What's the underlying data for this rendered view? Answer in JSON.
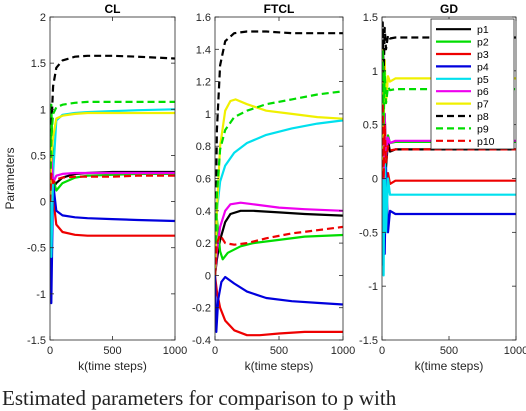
{
  "figure": {
    "caption": "Estimated parameters for comparison to p with"
  },
  "chart_data": [
    {
      "type": "line",
      "title": "CL",
      "xlabel": "k(time steps)",
      "ylabel": "Parameters",
      "xlim": [
        0,
        1000
      ],
      "ylim": [
        -1.5,
        2
      ],
      "xticks": [
        0,
        500,
        1000
      ],
      "yticks": [
        -1.5,
        -1,
        -0.5,
        0,
        0.5,
        1,
        1.5,
        2
      ],
      "grid": false,
      "series": [
        {
          "name": "p1",
          "color": "#000000",
          "dash": "solid",
          "x": [
            0,
            10,
            25,
            50,
            100,
            200,
            300,
            500,
            700,
            1000
          ],
          "y": [
            0,
            0.9,
            0.15,
            0.2,
            0.26,
            0.3,
            0.31,
            0.32,
            0.32,
            0.32
          ]
        },
        {
          "name": "p2",
          "color": "#00dd00",
          "dash": "solid",
          "x": [
            0,
            10,
            25,
            50,
            100,
            200,
            300,
            500,
            700,
            1000
          ],
          "y": [
            0,
            1.05,
            0.25,
            0.12,
            0.2,
            0.26,
            0.28,
            0.29,
            0.3,
            0.3
          ]
        },
        {
          "name": "p3",
          "color": "#ee0000",
          "dash": "solid",
          "x": [
            0,
            10,
            25,
            50,
            100,
            200,
            300,
            500,
            700,
            1000
          ],
          "y": [
            0,
            0.4,
            0.05,
            -0.25,
            -0.33,
            -0.36,
            -0.37,
            -0.37,
            -0.37,
            -0.37
          ]
        },
        {
          "name": "p4",
          "color": "#0000dd",
          "dash": "solid",
          "x": [
            0,
            10,
            25,
            50,
            100,
            200,
            300,
            500,
            700,
            1000
          ],
          "y": [
            0,
            -1.1,
            0.2,
            -0.1,
            -0.15,
            -0.17,
            -0.18,
            -0.19,
            -0.2,
            -0.21
          ]
        },
        {
          "name": "p5",
          "color": "#00e0ee",
          "dash": "solid",
          "x": [
            0,
            10,
            25,
            50,
            100,
            200,
            300,
            500,
            700,
            1000
          ],
          "y": [
            0,
            -0.6,
            0.3,
            0.88,
            0.94,
            0.96,
            0.97,
            0.98,
            0.99,
            1.0
          ]
        },
        {
          "name": "p6",
          "color": "#ee00ee",
          "dash": "solid",
          "x": [
            0,
            10,
            25,
            50,
            100,
            200,
            300,
            500,
            700,
            1000
          ],
          "y": [
            0,
            0.5,
            0.2,
            0.28,
            0.3,
            0.31,
            0.31,
            0.31,
            0.31,
            0.31
          ]
        },
        {
          "name": "p7",
          "color": "#f0f000",
          "dash": "solid",
          "x": [
            0,
            10,
            25,
            50,
            100,
            200,
            300,
            500,
            700,
            1000
          ],
          "y": [
            0,
            0.5,
            0.7,
            0.9,
            0.93,
            0.95,
            0.96,
            0.96,
            0.96,
            0.96
          ]
        },
        {
          "name": "p8",
          "color": "#000000",
          "dash": "dashed",
          "x": [
            0,
            10,
            25,
            50,
            100,
            200,
            300,
            500,
            700,
            1000
          ],
          "y": [
            0,
            0.8,
            1.25,
            1.45,
            1.53,
            1.57,
            1.58,
            1.58,
            1.57,
            1.55
          ]
        },
        {
          "name": "p9",
          "color": "#00dd00",
          "dash": "dashed",
          "x": [
            0,
            10,
            25,
            50,
            100,
            200,
            300,
            500,
            700,
            1000
          ],
          "y": [
            0,
            0.7,
            0.95,
            1.02,
            1.05,
            1.07,
            1.08,
            1.08,
            1.08,
            1.08
          ]
        },
        {
          "name": "p10",
          "color": "#ee0000",
          "dash": "dashed",
          "x": [
            0,
            10,
            25,
            50,
            100,
            200,
            300,
            500,
            700,
            1000
          ],
          "y": [
            0,
            0.3,
            0.2,
            0.24,
            0.26,
            0.27,
            0.27,
            0.27,
            0.28,
            0.28
          ]
        }
      ]
    },
    {
      "type": "line",
      "title": "FTCL",
      "xlabel": "k(time steps)",
      "ylabel": "",
      "xlim": [
        0,
        1000
      ],
      "ylim": [
        -0.4,
        1.6
      ],
      "xticks": [
        0,
        500,
        1000
      ],
      "yticks": [
        -0.4,
        -0.2,
        0,
        0.2,
        0.4,
        0.6,
        0.8,
        1,
        1.2,
        1.4,
        1.6
      ],
      "grid": false,
      "series": [
        {
          "name": "p1",
          "color": "#000000",
          "dash": "solid",
          "x": [
            0,
            15,
            40,
            80,
            120,
            200,
            300,
            500,
            700,
            1000
          ],
          "y": [
            0,
            0.1,
            0.22,
            0.33,
            0.38,
            0.4,
            0.4,
            0.39,
            0.38,
            0.37
          ]
        },
        {
          "name": "p2",
          "color": "#00dd00",
          "dash": "solid",
          "x": [
            0,
            15,
            40,
            60,
            100,
            200,
            300,
            500,
            700,
            1000
          ],
          "y": [
            0,
            0.35,
            0.15,
            0.1,
            0.14,
            0.18,
            0.2,
            0.22,
            0.24,
            0.25
          ]
        },
        {
          "name": "p3",
          "color": "#ee0000",
          "dash": "solid",
          "x": [
            0,
            15,
            40,
            80,
            150,
            250,
            350,
            500,
            700,
            1000
          ],
          "y": [
            0,
            -0.1,
            -0.2,
            -0.28,
            -0.34,
            -0.37,
            -0.37,
            -0.36,
            -0.35,
            -0.35
          ]
        },
        {
          "name": "p4",
          "color": "#0000dd",
          "dash": "solid",
          "x": [
            0,
            10,
            25,
            50,
            80,
            150,
            250,
            400,
            600,
            800,
            1000
          ],
          "y": [
            0,
            -0.35,
            -0.15,
            -0.04,
            -0.01,
            -0.05,
            -0.1,
            -0.14,
            -0.16,
            -0.17,
            -0.18
          ]
        },
        {
          "name": "p5",
          "color": "#00e0ee",
          "dash": "solid",
          "x": [
            0,
            15,
            40,
            80,
            150,
            250,
            400,
            600,
            800,
            1000
          ],
          "y": [
            0,
            0.4,
            0.58,
            0.68,
            0.76,
            0.82,
            0.87,
            0.91,
            0.94,
            0.96
          ]
        },
        {
          "name": "p6",
          "color": "#ee00ee",
          "dash": "solid",
          "x": [
            0,
            15,
            40,
            80,
            120,
            200,
            300,
            500,
            700,
            1000
          ],
          "y": [
            0,
            0.15,
            0.3,
            0.4,
            0.44,
            0.45,
            0.44,
            0.42,
            0.41,
            0.4
          ]
        },
        {
          "name": "p7",
          "color": "#f0f000",
          "dash": "solid",
          "x": [
            0,
            15,
            40,
            80,
            120,
            160,
            250,
            400,
            600,
            800,
            1000
          ],
          "y": [
            0,
            0.4,
            0.8,
            1.02,
            1.08,
            1.09,
            1.06,
            1.02,
            1.0,
            0.98,
            0.97
          ]
        },
        {
          "name": "p8",
          "color": "#000000",
          "dash": "dashed",
          "x": [
            0,
            15,
            40,
            80,
            150,
            250,
            400,
            600,
            800,
            1000
          ],
          "y": [
            0,
            0.9,
            1.3,
            1.45,
            1.5,
            1.51,
            1.51,
            1.5,
            1.5,
            1.5
          ]
        },
        {
          "name": "p9",
          "color": "#00dd00",
          "dash": "dashed",
          "x": [
            0,
            15,
            40,
            80,
            150,
            250,
            400,
            600,
            800,
            1000
          ],
          "y": [
            0,
            0.5,
            0.78,
            0.9,
            0.98,
            1.02,
            1.06,
            1.09,
            1.12,
            1.14
          ]
        },
        {
          "name": "p10",
          "color": "#ee0000",
          "dash": "dashed",
          "x": [
            0,
            15,
            40,
            80,
            150,
            250,
            400,
            600,
            800,
            1000
          ],
          "y": [
            0,
            0.2,
            0.25,
            0.2,
            0.19,
            0.2,
            0.23,
            0.26,
            0.28,
            0.3
          ]
        }
      ]
    },
    {
      "type": "line",
      "title": "GD",
      "xlabel": "k(time steps)",
      "ylabel": "",
      "xlim": [
        0,
        1000
      ],
      "ylim": [
        -1.5,
        1.5
      ],
      "xticks": [
        0,
        500,
        1000
      ],
      "yticks": [
        -1.5,
        -1,
        -0.5,
        0,
        0.5,
        1,
        1.5
      ],
      "grid": false,
      "legend": "top-right",
      "series": [
        {
          "name": "p1",
          "color": "#000000",
          "dash": "solid",
          "x": [
            0,
            5,
            12,
            20,
            30,
            45,
            60,
            100,
            1000
          ],
          "y": [
            0,
            0.9,
            -0.3,
            0.6,
            0.1,
            0.35,
            0.25,
            0.27,
            0.27
          ]
        },
        {
          "name": "p2",
          "color": "#00dd00",
          "dash": "solid",
          "x": [
            0,
            5,
            12,
            20,
            30,
            45,
            60,
            100,
            1000
          ],
          "y": [
            0,
            1.1,
            0.1,
            0.6,
            0.2,
            0.4,
            0.33,
            0.34,
            0.34
          ]
        },
        {
          "name": "p3",
          "color": "#ee0000",
          "dash": "solid",
          "x": [
            0,
            5,
            12,
            20,
            30,
            45,
            60,
            100,
            1000
          ],
          "y": [
            0,
            0.5,
            -0.4,
            0.2,
            -0.2,
            0.05,
            -0.05,
            -0.02,
            -0.02
          ]
        },
        {
          "name": "p4",
          "color": "#0000dd",
          "dash": "solid",
          "x": [
            0,
            5,
            12,
            20,
            30,
            45,
            60,
            100,
            1000
          ],
          "y": [
            0,
            -0.8,
            0.4,
            -0.7,
            0.1,
            -0.5,
            -0.3,
            -0.33,
            -0.33
          ]
        },
        {
          "name": "p5",
          "color": "#00e0ee",
          "dash": "solid",
          "x": [
            0,
            5,
            12,
            20,
            30,
            45,
            60,
            100,
            1000
          ],
          "y": [
            0,
            0.8,
            -0.9,
            0.5,
            -0.5,
            0.0,
            -0.15,
            -0.15,
            -0.15
          ]
        },
        {
          "name": "p6",
          "color": "#ee00ee",
          "dash": "solid",
          "x": [
            0,
            5,
            12,
            20,
            30,
            45,
            60,
            100,
            1000
          ],
          "y": [
            0,
            0.9,
            0.0,
            0.6,
            0.2,
            0.38,
            0.33,
            0.35,
            0.35
          ]
        },
        {
          "name": "p7",
          "color": "#f0f000",
          "dash": "solid",
          "x": [
            0,
            5,
            12,
            20,
            30,
            45,
            60,
            100,
            1000
          ],
          "y": [
            0,
            1.2,
            0.4,
            1.1,
            0.7,
            0.95,
            0.9,
            0.93,
            0.93
          ]
        },
        {
          "name": "p8",
          "color": "#000000",
          "dash": "dashed",
          "x": [
            0,
            5,
            12,
            20,
            30,
            45,
            60,
            100,
            1000
          ],
          "y": [
            0,
            1.45,
            0.9,
            1.4,
            1.2,
            1.33,
            1.3,
            1.31,
            1.31
          ]
        },
        {
          "name": "p9",
          "color": "#00dd00",
          "dash": "dashed",
          "x": [
            0,
            5,
            12,
            20,
            30,
            45,
            60,
            100,
            1000
          ],
          "y": [
            0,
            1.2,
            0.5,
            1.0,
            0.7,
            0.85,
            0.82,
            0.83,
            0.83
          ]
        },
        {
          "name": "p10",
          "color": "#ee0000",
          "dash": "dashed",
          "x": [
            0,
            5,
            12,
            20,
            30,
            45,
            60,
            100,
            1000
          ],
          "y": [
            0,
            0.7,
            0.0,
            0.5,
            0.15,
            0.3,
            0.26,
            0.27,
            0.27
          ]
        }
      ]
    }
  ]
}
